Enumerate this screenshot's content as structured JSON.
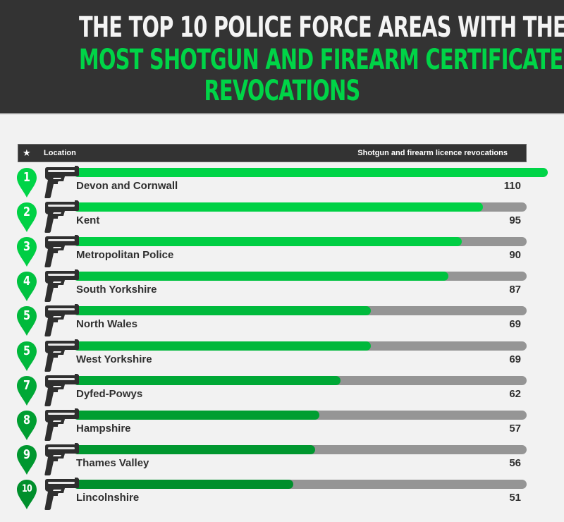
{
  "header": {
    "title_line1": "THE TOP 10 POLICE FORCE AREAS WITH THE",
    "title_line2": "MOST SHOTGUN AND FIREARM CERTIFICATE",
    "title_line3": "REVOCATIONS"
  },
  "table": {
    "star_icon": "★",
    "col_location": "Location",
    "col_value": "Shotgun and firearm licence revocations"
  },
  "colors": {
    "banner_bg": "#333333",
    "title_white": "#f4f4f4",
    "title_green": "#00d447",
    "track_grey": "#959595",
    "text_dark": "#2f2f2f"
  },
  "rows": [
    {
      "rank": "1",
      "location": "Devon and Cornwall",
      "value": "110",
      "color": "#00d447"
    },
    {
      "rank": "2",
      "location": "Kent",
      "value": "95",
      "color": "#00d145"
    },
    {
      "rank": "3",
      "location": "Metropolitan Police",
      "value": "90",
      "color": "#00ce43"
    },
    {
      "rank": "4",
      "location": "South Yorkshire",
      "value": "87",
      "color": "#00c240"
    },
    {
      "rank": "5",
      "location": "North Wales",
      "value": "69",
      "color": "#00ba3c"
    },
    {
      "rank": "5",
      "location": "West Yorkshire",
      "value": "69",
      "color": "#00b83b"
    },
    {
      "rank": "7",
      "location": "Dyfed-Powys",
      "value": "62",
      "color": "#00a836"
    },
    {
      "rank": "8",
      "location": "Hampshire",
      "value": "57",
      "color": "#009e31"
    },
    {
      "rank": "9",
      "location": "Thames Valley",
      "value": "56",
      "color": "#00972f"
    },
    {
      "rank": "10",
      "location": "Lincolnshire",
      "value": "51",
      "color": "#008f2c"
    }
  ],
  "chart_data": {
    "type": "bar",
    "orientation": "horizontal",
    "title": "The Top 10 Police Force Areas With The Most Shotgun And Firearm Certificate Revocations",
    "xlabel": "Shotgun and firearm licence revocations",
    "ylabel": "Location",
    "categories": [
      "Devon and Cornwall",
      "Kent",
      "Metropolitan Police",
      "South Yorkshire",
      "North Wales",
      "West Yorkshire",
      "Dyfed-Powys",
      "Hampshire",
      "Thames Valley",
      "Lincolnshire"
    ],
    "ranks": [
      1,
      2,
      3,
      4,
      5,
      5,
      7,
      8,
      9,
      10
    ],
    "values": [
      110,
      95,
      90,
      87,
      69,
      69,
      62,
      57,
      56,
      51
    ],
    "grid": false,
    "legend": "none"
  }
}
